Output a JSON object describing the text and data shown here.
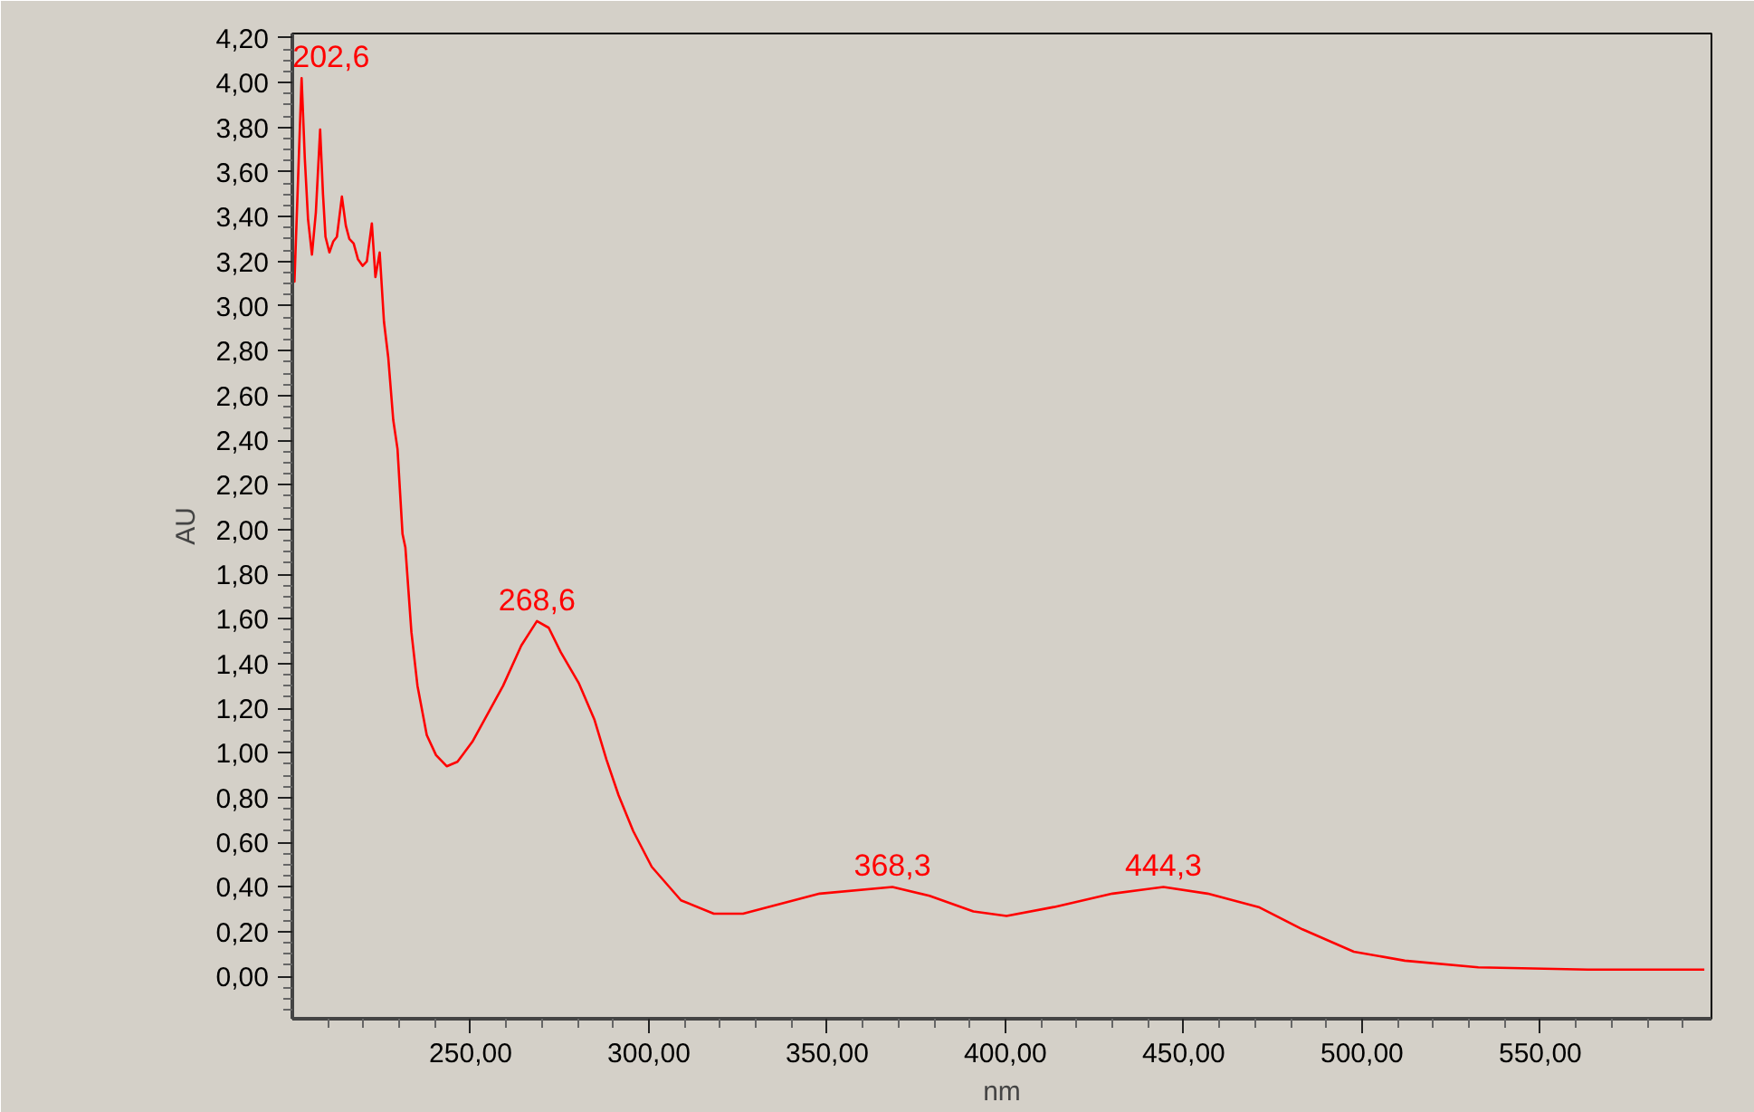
{
  "chart_data": {
    "type": "line",
    "xlabel": "nm",
    "ylabel": "AU",
    "grid": false,
    "marker": "none",
    "line_style": "solid",
    "xlim": [
      200,
      598
    ],
    "ylim": [
      -0.19,
      4.22
    ],
    "xticks": [
      {
        "value": 210,
        "label": null
      },
      {
        "value": 220,
        "label": null
      },
      {
        "value": 230,
        "label": null
      },
      {
        "value": 240,
        "label": null
      },
      {
        "value": 250,
        "label": "250,00"
      },
      {
        "value": 260,
        "label": null
      },
      {
        "value": 270,
        "label": null
      },
      {
        "value": 280,
        "label": null
      },
      {
        "value": 290,
        "label": null
      },
      {
        "value": 300,
        "label": "300,00"
      },
      {
        "value": 310,
        "label": null
      },
      {
        "value": 320,
        "label": null
      },
      {
        "value": 330,
        "label": null
      },
      {
        "value": 340,
        "label": null
      },
      {
        "value": 350,
        "label": "350,00"
      },
      {
        "value": 360,
        "label": null
      },
      {
        "value": 370,
        "label": null
      },
      {
        "value": 380,
        "label": null
      },
      {
        "value": 390,
        "label": null
      },
      {
        "value": 400,
        "label": "400,00"
      },
      {
        "value": 410,
        "label": null
      },
      {
        "value": 420,
        "label": null
      },
      {
        "value": 430,
        "label": null
      },
      {
        "value": 440,
        "label": null
      },
      {
        "value": 450,
        "label": "450,00"
      },
      {
        "value": 460,
        "label": null
      },
      {
        "value": 470,
        "label": null
      },
      {
        "value": 480,
        "label": null
      },
      {
        "value": 490,
        "label": null
      },
      {
        "value": 500,
        "label": "500,00"
      },
      {
        "value": 510,
        "label": null
      },
      {
        "value": 520,
        "label": null
      },
      {
        "value": 530,
        "label": null
      },
      {
        "value": 540,
        "label": null
      },
      {
        "value": 550,
        "label": "550,00"
      },
      {
        "value": 560,
        "label": null
      },
      {
        "value": 570,
        "label": null
      },
      {
        "value": 580,
        "label": null
      },
      {
        "value": 590,
        "label": null
      }
    ],
    "yticks": [
      {
        "value": -0.15,
        "label": null
      },
      {
        "value": -0.1,
        "label": null
      },
      {
        "value": -0.05,
        "label": null
      },
      {
        "value": 0,
        "label": "0,00"
      },
      {
        "value": 0.05,
        "label": null
      },
      {
        "value": 0.1,
        "label": null
      },
      {
        "value": 0.15,
        "label": null
      },
      {
        "value": 0.2,
        "label": "0,20"
      },
      {
        "value": 0.25,
        "label": null
      },
      {
        "value": 0.3,
        "label": null
      },
      {
        "value": 0.35,
        "label": null
      },
      {
        "value": 0.4,
        "label": "0,40"
      },
      {
        "value": 0.45,
        "label": null
      },
      {
        "value": 0.5,
        "label": null
      },
      {
        "value": 0.55,
        "label": null
      },
      {
        "value": 0.6,
        "label": "0,60"
      },
      {
        "value": 0.65,
        "label": null
      },
      {
        "value": 0.7,
        "label": null
      },
      {
        "value": 0.75,
        "label": null
      },
      {
        "value": 0.8,
        "label": "0,80"
      },
      {
        "value": 0.85,
        "label": null
      },
      {
        "value": 0.9,
        "label": null
      },
      {
        "value": 0.95,
        "label": null
      },
      {
        "value": 1.0,
        "label": "1,00"
      },
      {
        "value": 1.05,
        "label": null
      },
      {
        "value": 1.1,
        "label": null
      },
      {
        "value": 1.15,
        "label": null
      },
      {
        "value": 1.2,
        "label": "1,20"
      },
      {
        "value": 1.25,
        "label": null
      },
      {
        "value": 1.3,
        "label": null
      },
      {
        "value": 1.35,
        "label": null
      },
      {
        "value": 1.4,
        "label": "1,40"
      },
      {
        "value": 1.45,
        "label": null
      },
      {
        "value": 1.5,
        "label": null
      },
      {
        "value": 1.55,
        "label": null
      },
      {
        "value": 1.6,
        "label": "1,60"
      },
      {
        "value": 1.65,
        "label": null
      },
      {
        "value": 1.7,
        "label": null
      },
      {
        "value": 1.75,
        "label": null
      },
      {
        "value": 1.8,
        "label": "1,80"
      },
      {
        "value": 1.85,
        "label": null
      },
      {
        "value": 1.9,
        "label": null
      },
      {
        "value": 1.95,
        "label": null
      },
      {
        "value": 2.0,
        "label": "2,00"
      },
      {
        "value": 2.05,
        "label": null
      },
      {
        "value": 2.1,
        "label": null
      },
      {
        "value": 2.15,
        "label": null
      },
      {
        "value": 2.2,
        "label": "2,20"
      },
      {
        "value": 2.25,
        "label": null
      },
      {
        "value": 2.3,
        "label": null
      },
      {
        "value": 2.35,
        "label": null
      },
      {
        "value": 2.4,
        "label": "2,40"
      },
      {
        "value": 2.45,
        "label": null
      },
      {
        "value": 2.5,
        "label": null
      },
      {
        "value": 2.55,
        "label": null
      },
      {
        "value": 2.6,
        "label": "2,60"
      },
      {
        "value": 2.65,
        "label": null
      },
      {
        "value": 2.7,
        "label": null
      },
      {
        "value": 2.75,
        "label": null
      },
      {
        "value": 2.8,
        "label": "2,80"
      },
      {
        "value": 2.85,
        "label": null
      },
      {
        "value": 2.9,
        "label": null
      },
      {
        "value": 2.95,
        "label": null
      },
      {
        "value": 3.0,
        "label": "3,00"
      },
      {
        "value": 3.05,
        "label": null
      },
      {
        "value": 3.1,
        "label": null
      },
      {
        "value": 3.15,
        "label": null
      },
      {
        "value": 3.2,
        "label": "3,20"
      },
      {
        "value": 3.25,
        "label": null
      },
      {
        "value": 3.3,
        "label": null
      },
      {
        "value": 3.35,
        "label": null
      },
      {
        "value": 3.4,
        "label": "3,40"
      },
      {
        "value": 3.45,
        "label": null
      },
      {
        "value": 3.5,
        "label": null
      },
      {
        "value": 3.55,
        "label": null
      },
      {
        "value": 3.6,
        "label": "3,60"
      },
      {
        "value": 3.65,
        "label": null
      },
      {
        "value": 3.7,
        "label": null
      },
      {
        "value": 3.75,
        "label": null
      },
      {
        "value": 3.8,
        "label": "3,80"
      },
      {
        "value": 3.85,
        "label": null
      },
      {
        "value": 3.9,
        "label": null
      },
      {
        "value": 3.95,
        "label": null
      },
      {
        "value": 4.0,
        "label": "4,00"
      },
      {
        "value": 4.05,
        "label": null
      },
      {
        "value": 4.1,
        "label": null
      },
      {
        "value": 4.15,
        "label": null
      },
      {
        "value": 4.2,
        "label": "4,20"
      }
    ],
    "x": [
      200.1,
      200.6,
      202.6,
      203.5,
      204.4,
      205.5,
      206.6,
      207.8,
      208.6,
      209.3,
      210.4,
      211.5,
      212.5,
      213.9,
      215.0,
      216.0,
      217.2,
      218.4,
      219.7,
      220.9,
      222.3,
      223.3,
      224.5,
      225.7,
      226.9,
      228.3,
      229.5,
      230.9,
      231.7,
      233.4,
      235.1,
      237.7,
      240.3,
      243.3,
      246.3,
      250.5,
      259.1,
      264.2,
      268.6,
      271.9,
      275.3,
      280.4,
      284.7,
      288.1,
      291.5,
      295.6,
      300.8,
      309,
      318.2,
      326.4,
      347.9,
      368.3,
      378.7,
      391,
      400.3,
      413.6,
      430,
      444.3,
      456.7,
      471,
      483.3,
      497.7,
      512,
      532.6,
      563.3,
      596
    ],
    "series": [
      {
        "color": "#ff0000",
        "values": [
          3.25,
          3.11,
          4.02,
          3.66,
          3.39,
          3.23,
          3.42,
          3.79,
          3.5,
          3.31,
          3.24,
          3.29,
          3.31,
          3.49,
          3.36,
          3.3,
          3.28,
          3.21,
          3.18,
          3.2,
          3.37,
          3.13,
          3.24,
          2.93,
          2.77,
          2.49,
          2.36,
          1.98,
          1.92,
          1.54,
          1.3,
          1.08,
          0.99,
          0.94,
          0.96,
          1.05,
          1.3,
          1.48,
          1.59,
          1.56,
          1.45,
          1.31,
          1.15,
          0.97,
          0.81,
          0.65,
          0.49,
          0.34,
          0.28,
          0.28,
          0.37,
          0.4,
          0.36,
          0.29,
          0.27,
          0.31,
          0.37,
          0.4,
          0.37,
          0.31,
          0.21,
          0.11,
          0.07,
          0.04,
          0.03,
          0.03
        ]
      }
    ],
    "annotations": [
      {
        "text": "202,6",
        "x": 202.6,
        "y": 4.02
      },
      {
        "text": "268,6",
        "x": 268.6,
        "y": 1.59
      },
      {
        "text": "368,3",
        "x": 368.3,
        "y": 0.4
      },
      {
        "text": "444,3",
        "x": 444.3,
        "y": 0.4
      }
    ]
  }
}
